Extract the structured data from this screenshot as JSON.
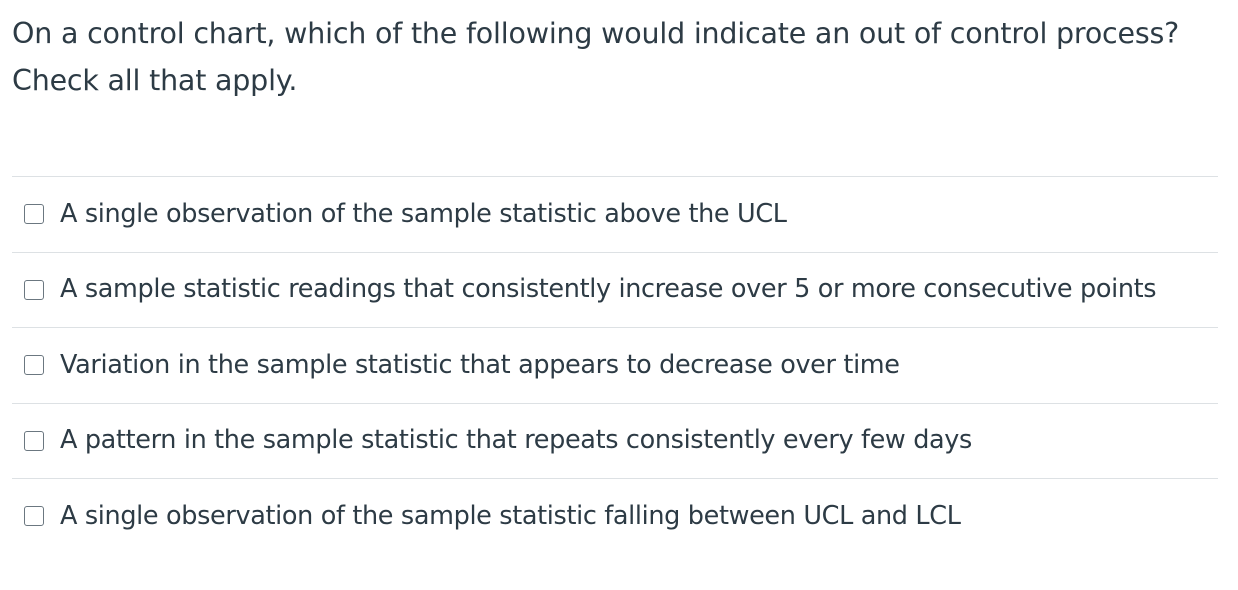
{
  "question": {
    "text": "On a control chart, which of the following would indicate an out of control process? Check all that apply."
  },
  "answers": [
    {
      "label": "A single observation of the sample statistic above the UCL",
      "checked": false
    },
    {
      "label": "A sample statistic readings that consistently increase over 5 or more consecutive points",
      "checked": false
    },
    {
      "label": "Variation in the sample statistic that appears to decrease over time",
      "checked": false
    },
    {
      "label": "A pattern in the sample statistic that repeats consistently every few days",
      "checked": false
    },
    {
      "label": "A single observation of the sample statistic falling between UCL and LCL",
      "checked": false
    }
  ]
}
